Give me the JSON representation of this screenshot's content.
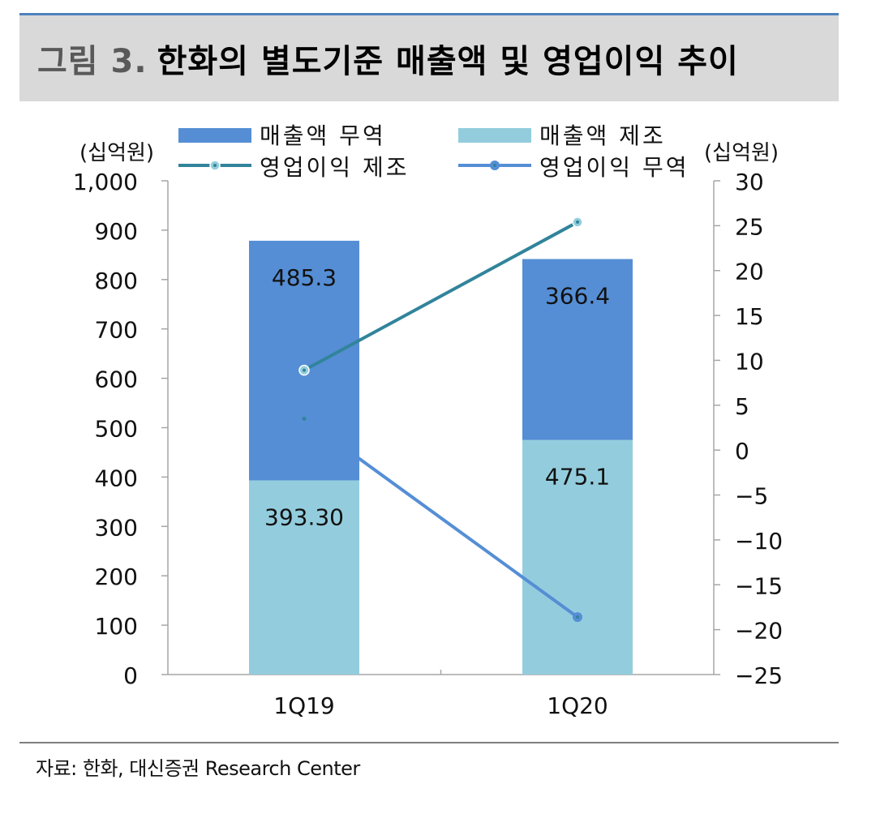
{
  "figure": {
    "number": "그림 3.",
    "title": "한화의 별도기준 매출액 및 영업이익 추이"
  },
  "source": "자료: 한화, 대신증권 Research Center",
  "colors": {
    "sales_trade": "#558ed5",
    "sales_manufacture": "#93cddd",
    "op_manufacture": "#31849b",
    "op_trade": "#558ed5",
    "axis": "#a6a6a6"
  },
  "chart_data": {
    "type": "bar",
    "categories": [
      "1Q19",
      "1Q20"
    ],
    "left_axis": {
      "unit_label": "(십억원)",
      "ylim": [
        0,
        1000
      ],
      "ticks": [
        0,
        100,
        200,
        300,
        400,
        500,
        600,
        700,
        800,
        900,
        1000
      ],
      "tick_labels": [
        "0",
        "100",
        "200",
        "300",
        "400",
        "500",
        "600",
        "700",
        "800",
        "900",
        "1,000"
      ]
    },
    "right_axis": {
      "unit_label": "(십억원)",
      "ylim": [
        -25,
        30
      ],
      "ticks": [
        -25,
        -20,
        -15,
        -10,
        -5,
        0,
        5,
        10,
        15,
        20,
        25,
        30
      ],
      "tick_labels": [
        "−25",
        "−20",
        "−15",
        "−10",
        "−5",
        "0",
        "5",
        "10",
        "15",
        "20",
        "25",
        "30"
      ]
    },
    "bar_series": [
      {
        "name": "매출액 제조",
        "values": [
          393.3,
          475.1
        ],
        "labels": [
          "393.30",
          "475.1"
        ],
        "color": "#93cddd"
      },
      {
        "name": "매출액 무역",
        "values": [
          485.3,
          366.4
        ],
        "labels": [
          "485.3",
          "366.4"
        ],
        "color": "#558ed5"
      }
    ],
    "line_series": [
      {
        "name": "영업이익 제조",
        "values": [
          8.9,
          25.4
        ],
        "color": "#31849b",
        "marker_fill": "#93cddd"
      },
      {
        "name": "영업이익 무역",
        "values": [
          3.5,
          -18.6
        ],
        "color": "#558ed5",
        "marker_fill": "#558ed5"
      }
    ],
    "legend": [
      {
        "label": "매출액 무역",
        "kind": "bar",
        "color": "#558ed5"
      },
      {
        "label": "매출액 제조",
        "kind": "bar",
        "color": "#93cddd"
      },
      {
        "label": "영업이익 제조",
        "kind": "line",
        "color": "#31849b"
      },
      {
        "label": "영업이익 무역",
        "kind": "line",
        "color": "#558ed5"
      }
    ],
    "legend_position": "top",
    "grid": false
  }
}
